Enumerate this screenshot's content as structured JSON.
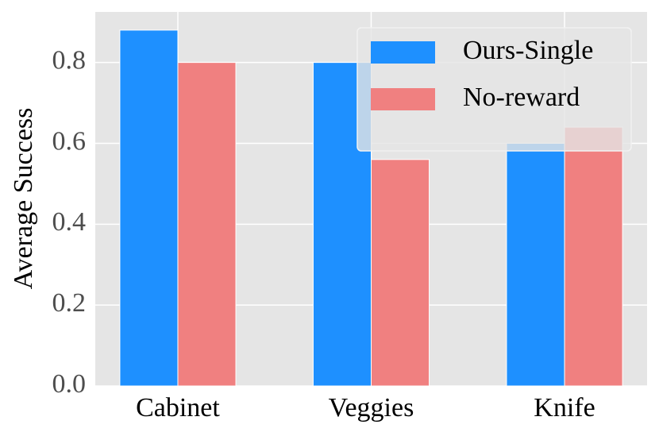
{
  "chart_data": {
    "type": "bar",
    "ylabel": "Average Success",
    "categories": [
      "Cabinet",
      "Veggies",
      "Knife"
    ],
    "series": [
      {
        "name": "Ours-Single",
        "color": "#1e90ff",
        "values": [
          0.88,
          0.8,
          0.6
        ]
      },
      {
        "name": "No-reward",
        "color": "#f08080",
        "values": [
          0.8,
          0.56,
          0.64
        ]
      }
    ],
    "ylim": [
      0,
      0.925
    ],
    "yticks": [
      {
        "value": 0,
        "label": "0.0"
      },
      0.2,
      0.4,
      0.6,
      0.8
    ],
    "grid": true,
    "legend": "upper right"
  }
}
